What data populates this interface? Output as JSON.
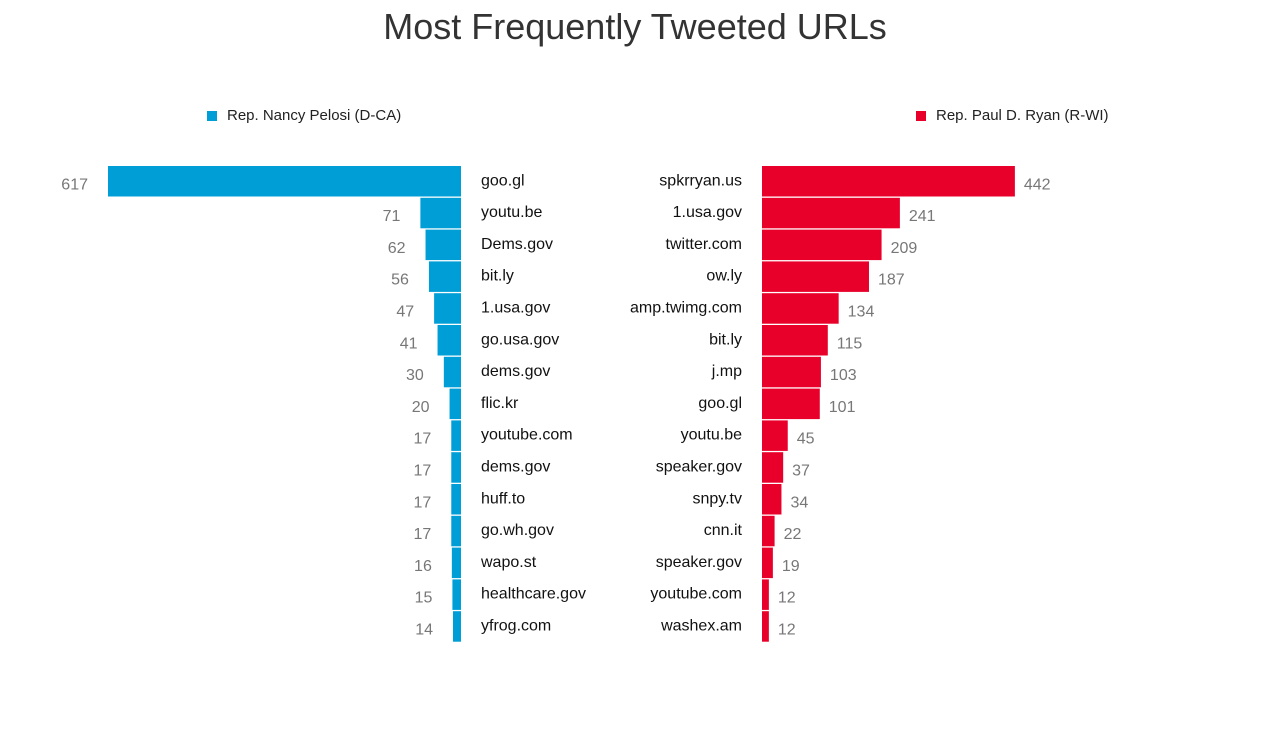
{
  "title": "Most Frequently Tweeted URLs",
  "colors": {
    "left": "#009ed6",
    "right": "#e8002b"
  },
  "chart_data": [
    {
      "type": "bar",
      "orientation": "horizontal",
      "direction": "left",
      "series_name": "Rep. Nancy Pelosi (D-CA)",
      "color": "#009ed6",
      "categories": [
        "goo.gl",
        "youtu.be",
        "Dems.gov",
        "bit.ly",
        "1.usa.gov",
        "go.usa.gov",
        "dems.gov",
        "flic.kr",
        "youtube.com",
        "dems.gov",
        "huff.to",
        "go.wh.gov",
        "wapo.st",
        "healthcare.gov",
        "yfrog.com"
      ],
      "values": [
        617,
        71,
        62,
        56,
        47,
        41,
        30,
        20,
        17,
        17,
        17,
        17,
        16,
        15,
        14
      ],
      "legend": "top-left"
    },
    {
      "type": "bar",
      "orientation": "horizontal",
      "direction": "right",
      "series_name": "Rep. Paul D. Ryan (R-WI)",
      "color": "#e8002b",
      "categories": [
        "spkrryan.us",
        "1.usa.gov",
        "twitter.com",
        "ow.ly",
        "amp.twimg.com",
        "bit.ly",
        "j.mp",
        "goo.gl",
        "youtu.be",
        "speaker.gov",
        "snpy.tv",
        "cnn.it",
        "speaker.gov",
        "youtube.com",
        "washex.am"
      ],
      "values": [
        442,
        241,
        209,
        187,
        134,
        115,
        103,
        101,
        45,
        37,
        34,
        22,
        19,
        12,
        12
      ],
      "legend": "top-right"
    }
  ]
}
